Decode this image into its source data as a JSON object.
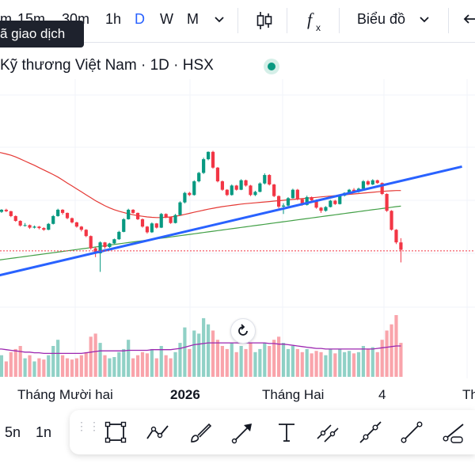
{
  "toolbar": {
    "intervals": [
      "m",
      "15m",
      "30m",
      "1h",
      "D",
      "W",
      "M"
    ],
    "active_interval": "D",
    "chart_type_label": "Biểu đồ",
    "tooltip": "ã giao dịch"
  },
  "symbol": {
    "title": "Kỹ thương Việt Nam · 1D · HSX",
    "status_color": "#089981"
  },
  "colors": {
    "up": "#089981",
    "down": "#f23645",
    "trendline": "#2962ff",
    "ma_fast": "#e53935",
    "ma_slow": "#43a047",
    "volume_ma": "#9c27b0",
    "last_price_line": "#f23645"
  },
  "x_axis": {
    "labels": [
      "Tháng Mười hai",
      "2026",
      "Tháng Hai",
      "4",
      "Th"
    ]
  },
  "bottom": {
    "intervals": [
      "5n",
      "1n"
    ],
    "tools": [
      "rectangle-icon",
      "path-icon",
      "brush-icon",
      "arrow-icon",
      "text-icon",
      "parallel-line-icon",
      "ray-icon",
      "trendline-icon",
      "info-line-icon"
    ]
  },
  "chart_data": {
    "type": "candlestick",
    "note_units": "price scale not printed",
    "candles": [
      [
        0.42,
        0.415,
        0.425,
        0.41
      ],
      [
        0.415,
        0.425,
        0.428,
        0.41
      ],
      [
        0.425,
        0.418,
        0.43,
        0.414
      ],
      [
        0.418,
        0.395,
        0.42,
        0.39
      ],
      [
        0.395,
        0.372,
        0.398,
        0.368
      ],
      [
        0.372,
        0.35,
        0.375,
        0.345
      ],
      [
        0.35,
        0.352,
        0.362,
        0.345
      ],
      [
        0.352,
        0.34,
        0.355,
        0.334
      ],
      [
        0.34,
        0.345,
        0.35,
        0.336
      ],
      [
        0.345,
        0.338,
        0.348,
        0.332
      ],
      [
        0.338,
        0.33,
        0.342,
        0.325
      ],
      [
        0.33,
        0.358,
        0.362,
        0.328
      ],
      [
        0.358,
        0.395,
        0.4,
        0.355
      ],
      [
        0.395,
        0.425,
        0.43,
        0.392
      ],
      [
        0.425,
        0.41,
        0.428,
        0.402
      ],
      [
        0.41,
        0.385,
        0.412,
        0.38
      ],
      [
        0.385,
        0.365,
        0.388,
        0.36
      ],
      [
        0.365,
        0.345,
        0.368,
        0.34
      ],
      [
        0.345,
        0.33,
        0.348,
        0.322
      ],
      [
        0.33,
        0.3,
        0.333,
        0.295
      ],
      [
        0.3,
        0.242,
        0.303,
        0.236
      ],
      [
        0.242,
        0.218,
        0.248,
        0.2
      ],
      [
        0.218,
        0.27,
        0.275,
        0.13
      ],
      [
        0.27,
        0.248,
        0.272,
        0.24
      ],
      [
        0.248,
        0.265,
        0.268,
        0.244
      ],
      [
        0.265,
        0.285,
        0.288,
        0.262
      ],
      [
        0.285,
        0.32,
        0.325,
        0.282
      ],
      [
        0.32,
        0.38,
        0.385,
        0.318
      ],
      [
        0.38,
        0.425,
        0.43,
        0.378
      ],
      [
        0.425,
        0.41,
        0.428,
        0.406
      ],
      [
        0.41,
        0.38,
        0.412,
        0.376
      ],
      [
        0.38,
        0.345,
        0.384,
        0.34
      ],
      [
        0.345,
        0.318,
        0.348,
        0.312
      ],
      [
        0.318,
        0.36,
        0.365,
        0.315
      ],
      [
        0.36,
        0.34,
        0.362,
        0.336
      ],
      [
        0.34,
        0.405,
        0.41,
        0.338
      ],
      [
        0.405,
        0.39,
        0.408,
        0.385
      ],
      [
        0.39,
        0.362,
        0.393,
        0.358
      ],
      [
        0.362,
        0.4,
        0.405,
        0.36
      ],
      [
        0.4,
        0.46,
        0.465,
        0.398
      ],
      [
        0.46,
        0.505,
        0.51,
        0.455
      ],
      [
        0.505,
        0.495,
        0.51,
        0.49
      ],
      [
        0.495,
        0.56,
        0.565,
        0.492
      ],
      [
        0.56,
        0.6,
        0.605,
        0.555
      ],
      [
        0.6,
        0.665,
        0.672,
        0.595
      ],
      [
        0.665,
        0.7,
        0.702,
        0.66
      ],
      [
        0.7,
        0.625,
        0.705,
        0.62
      ],
      [
        0.625,
        0.56,
        0.628,
        0.555
      ],
      [
        0.56,
        0.52,
        0.564,
        0.515
      ],
      [
        0.52,
        0.495,
        0.523,
        0.49
      ],
      [
        0.495,
        0.54,
        0.545,
        0.492
      ],
      [
        0.54,
        0.52,
        0.543,
        0.516
      ],
      [
        0.52,
        0.565,
        0.57,
        0.518
      ],
      [
        0.565,
        0.54,
        0.568,
        0.535
      ],
      [
        0.54,
        0.495,
        0.543,
        0.49
      ],
      [
        0.495,
        0.51,
        0.515,
        0.49
      ],
      [
        0.51,
        0.55,
        0.555,
        0.508
      ],
      [
        0.55,
        0.59,
        0.598,
        0.545
      ],
      [
        0.59,
        0.545,
        0.594,
        0.54
      ],
      [
        0.545,
        0.49,
        0.548,
        0.485
      ],
      [
        0.49,
        0.44,
        0.493,
        0.432
      ],
      [
        0.44,
        0.445,
        0.456,
        0.405
      ],
      [
        0.445,
        0.48,
        0.485,
        0.44
      ],
      [
        0.48,
        0.52,
        0.525,
        0.478
      ],
      [
        0.52,
        0.475,
        0.524,
        0.47
      ],
      [
        0.475,
        0.448,
        0.478,
        0.444
      ],
      [
        0.448,
        0.485,
        0.492,
        0.445
      ],
      [
        0.485,
        0.47,
        0.488,
        0.465
      ],
      [
        0.47,
        0.435,
        0.474,
        0.43
      ],
      [
        0.435,
        0.42,
        0.438,
        0.41
      ],
      [
        0.42,
        0.438,
        0.442,
        0.416
      ],
      [
        0.438,
        0.468,
        0.472,
        0.436
      ],
      [
        0.468,
        0.452,
        0.472,
        0.448
      ],
      [
        0.452,
        0.492,
        0.496,
        0.45
      ],
      [
        0.492,
        0.505,
        0.508,
        0.488
      ],
      [
        0.505,
        0.52,
        0.524,
        0.5
      ],
      [
        0.52,
        0.51,
        0.528,
        0.505
      ],
      [
        0.51,
        0.525,
        0.53,
        0.506
      ],
      [
        0.525,
        0.56,
        0.566,
        0.522
      ],
      [
        0.56,
        0.545,
        0.566,
        0.54
      ],
      [
        0.545,
        0.565,
        0.57,
        0.542
      ],
      [
        0.565,
        0.552,
        0.568,
        0.548
      ],
      [
        0.552,
        0.5,
        0.555,
        0.495
      ],
      [
        0.5,
        0.42,
        0.503,
        0.415
      ],
      [
        0.42,
        0.33,
        0.423,
        0.326
      ],
      [
        0.33,
        0.27,
        0.333,
        0.262
      ],
      [
        0.27,
        0.235,
        0.29,
        0.175
      ]
    ],
    "volumes": [
      0.3,
      0.35,
      0.25,
      0.4,
      0.45,
      0.5,
      0.3,
      0.35,
      0.25,
      0.3,
      0.28,
      0.35,
      0.5,
      0.6,
      0.35,
      0.3,
      0.28,
      0.3,
      0.35,
      0.4,
      0.65,
      0.7,
      0.55,
      0.35,
      0.3,
      0.32,
      0.4,
      0.45,
      0.6,
      0.3,
      0.35,
      0.4,
      0.38,
      0.45,
      0.3,
      0.5,
      0.35,
      0.3,
      0.4,
      0.55,
      0.8,
      0.45,
      0.75,
      0.7,
      0.95,
      0.85,
      0.75,
      0.6,
      0.5,
      0.45,
      0.55,
      0.4,
      0.5,
      0.45,
      0.55,
      0.4,
      0.45,
      0.55,
      0.5,
      0.6,
      0.65,
      0.55,
      0.45,
      0.5,
      0.45,
      0.4,
      0.45,
      0.38,
      0.42,
      0.4,
      0.35,
      0.45,
      0.38,
      0.45,
      0.4,
      0.42,
      0.38,
      0.4,
      0.5,
      0.45,
      0.48,
      0.4,
      0.6,
      0.75,
      0.85,
      1.0,
      0.55
    ],
    "ma_fast": [
      0.7,
      0.695,
      0.69,
      0.684,
      0.676,
      0.666,
      0.656,
      0.646,
      0.636,
      0.625,
      0.614,
      0.603,
      0.592,
      0.58,
      0.566,
      0.552,
      0.538,
      0.524,
      0.51,
      0.496,
      0.482,
      0.468,
      0.456,
      0.444,
      0.434,
      0.425,
      0.418,
      0.412,
      0.406,
      0.401,
      0.397,
      0.394,
      0.391,
      0.389,
      0.388,
      0.388,
      0.389,
      0.391,
      0.394,
      0.398,
      0.403,
      0.408,
      0.413,
      0.418,
      0.423,
      0.428,
      0.432,
      0.436,
      0.44,
      0.443,
      0.446,
      0.449,
      0.452,
      0.454,
      0.456,
      0.458,
      0.46,
      0.462,
      0.464,
      0.466,
      0.468,
      0.47,
      0.472,
      0.474,
      0.476,
      0.478,
      0.48,
      0.482,
      0.484,
      0.486,
      0.488,
      0.49,
      0.492,
      0.494,
      0.496,
      0.498,
      0.5,
      0.502,
      0.504,
      0.506,
      0.508,
      0.51,
      0.512,
      0.514,
      0.515,
      0.516,
      0.516
    ],
    "ma_slow": [
      0.185,
      0.188,
      0.191,
      0.194,
      0.197,
      0.2,
      0.203,
      0.206,
      0.209,
      0.212,
      0.215,
      0.218,
      0.221,
      0.224,
      0.227,
      0.23,
      0.233,
      0.236,
      0.239,
      0.242,
      0.245,
      0.248,
      0.251,
      0.254,
      0.257,
      0.26,
      0.263,
      0.266,
      0.269,
      0.272,
      0.275,
      0.278,
      0.281,
      0.284,
      0.287,
      0.29,
      0.293,
      0.296,
      0.299,
      0.302,
      0.305,
      0.308,
      0.311,
      0.314,
      0.317,
      0.32,
      0.323,
      0.326,
      0.329,
      0.332,
      0.335,
      0.338,
      0.341,
      0.344,
      0.347,
      0.35,
      0.353,
      0.356,
      0.359,
      0.362,
      0.365,
      0.368,
      0.371,
      0.374,
      0.377,
      0.38,
      0.383,
      0.386,
      0.389,
      0.392,
      0.395,
      0.398,
      0.401,
      0.404,
      0.407,
      0.41,
      0.413,
      0.416,
      0.419,
      0.422,
      0.425,
      0.428,
      0.431,
      0.434,
      0.437,
      0.44,
      0.442
    ],
    "volume_ma": [
      0.45,
      0.45,
      0.44,
      0.43,
      0.42,
      0.41,
      0.4,
      0.4,
      0.39,
      0.39,
      0.38,
      0.38,
      0.38,
      0.38,
      0.38,
      0.38,
      0.38,
      0.38,
      0.38,
      0.39,
      0.4,
      0.41,
      0.42,
      0.42,
      0.42,
      0.42,
      0.42,
      0.42,
      0.43,
      0.43,
      0.43,
      0.43,
      0.43,
      0.44,
      0.44,
      0.44,
      0.44,
      0.44,
      0.45,
      0.46,
      0.48,
      0.5,
      0.52,
      0.53,
      0.54,
      0.55,
      0.55,
      0.55,
      0.55,
      0.55,
      0.55,
      0.55,
      0.55,
      0.55,
      0.55,
      0.55,
      0.55,
      0.55,
      0.54,
      0.54,
      0.53,
      0.53,
      0.52,
      0.51,
      0.5,
      0.49,
      0.48,
      0.47,
      0.46,
      0.46,
      0.45,
      0.45,
      0.45,
      0.45,
      0.45,
      0.45,
      0.45,
      0.45,
      0.45,
      0.45,
      0.45,
      0.46,
      0.47,
      0.48,
      0.49,
      0.5,
      0.5
    ],
    "trendline": [
      [
        -4,
        0.09
      ],
      [
        99,
        0.63
      ]
    ],
    "last_price": 0.23
  }
}
